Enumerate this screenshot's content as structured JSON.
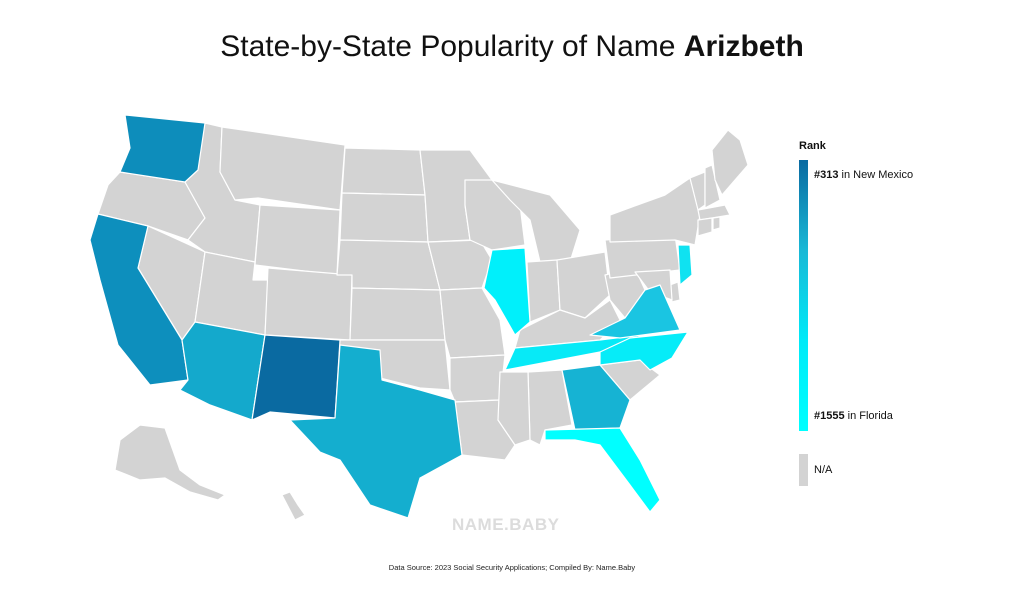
{
  "title": {
    "prefix": "State-by-State Popularity of Name",
    "name": "Arizbeth"
  },
  "legend": {
    "heading": "Rank",
    "top": {
      "rank": "#313",
      "suffix": "in New Mexico"
    },
    "bottom": {
      "rank": "#1555",
      "suffix": "in Florida"
    },
    "na_label": "N/A",
    "gradient_colors": [
      "#0a6aa1",
      "#19b8d6",
      "#00eaf8",
      "#00ffff"
    ],
    "na_color": "#d3d3d3"
  },
  "map": {
    "default_color": "#d3d3d3",
    "ranked_states": [
      {
        "state": "New Mexico",
        "color": "#0a6aa1"
      },
      {
        "state": "Washington",
        "color": "#0d8dbb"
      },
      {
        "state": "California",
        "color": "#0d8fbd"
      },
      {
        "state": "Arizona",
        "color": "#14a9cc"
      },
      {
        "state": "Texas",
        "color": "#14aecf"
      },
      {
        "state": "Georgia",
        "color": "#16b3d3"
      },
      {
        "state": "Virginia",
        "color": "#1ac5e2"
      },
      {
        "state": "Illinois",
        "color": "#00f0fb"
      },
      {
        "state": "New Jersey",
        "color": "#0fe2f1"
      },
      {
        "state": "Tennessee",
        "color": "#07eaf7"
      },
      {
        "state": "North Carolina",
        "color": "#06ecf8"
      },
      {
        "state": "Florida",
        "color": "#00ffff"
      }
    ]
  },
  "watermark": "NAME.BABY",
  "footer": "Data Source: 2023 Social Security Applications; Compiled By: Name.Baby"
}
